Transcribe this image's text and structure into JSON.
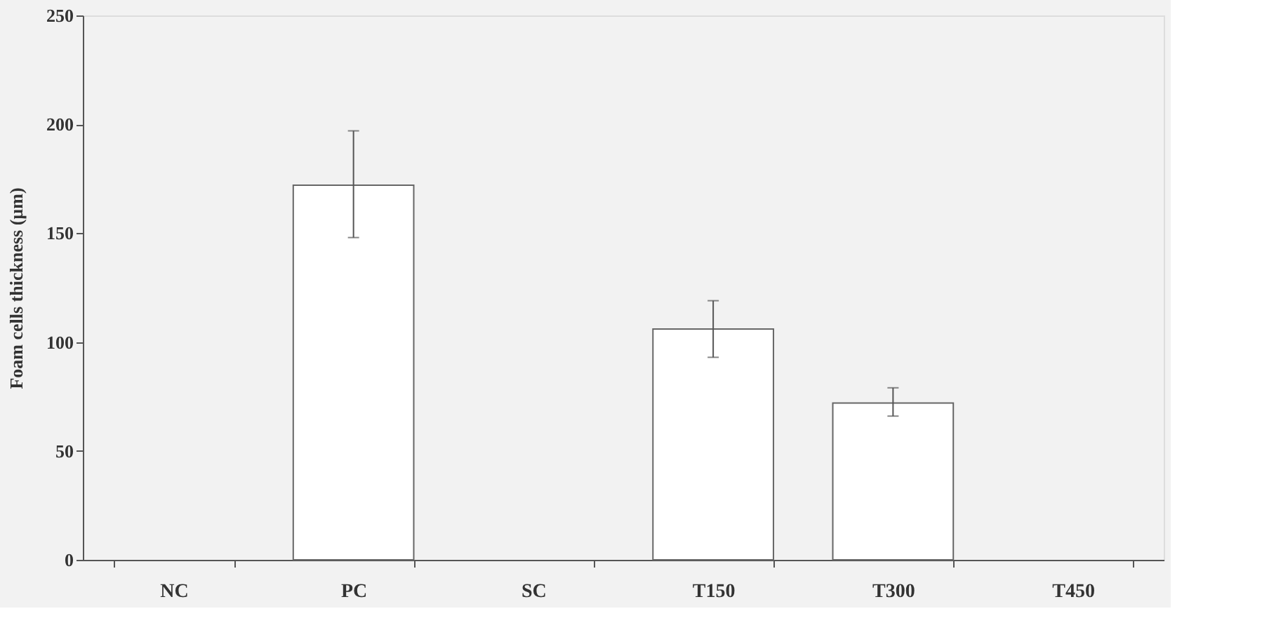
{
  "chart_data": {
    "type": "bar",
    "ylabel": "Foam cells thickness (µm)",
    "categories": [
      "NC",
      "PC",
      "SC",
      "T150",
      "T300",
      "T450"
    ],
    "values": [
      null,
      172,
      null,
      106,
      72,
      null
    ],
    "errors": [
      null,
      [
        148,
        197
      ],
      null,
      [
        93,
        119
      ],
      [
        66,
        79
      ],
      null
    ],
    "color": "#ffffff",
    "ylim": [
      0,
      250
    ],
    "yticks": [
      0,
      50,
      100,
      150,
      200,
      250
    ],
    "grid": false
  }
}
